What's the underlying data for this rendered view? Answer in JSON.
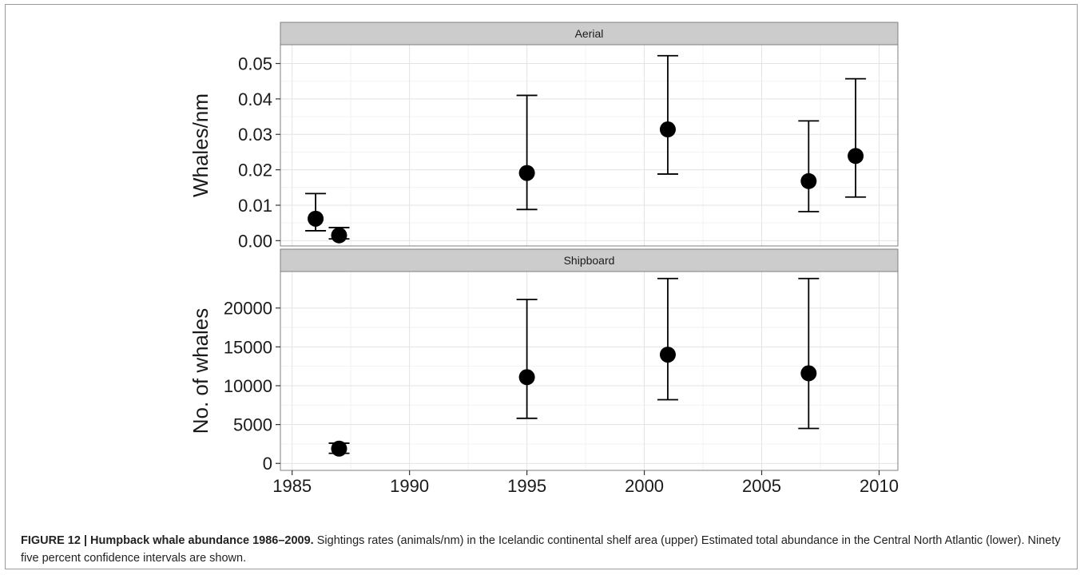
{
  "chart_data": [
    {
      "type": "scatter",
      "panel": "Aerial",
      "ylabel": "Whales/nm",
      "xlim": [
        1984.5,
        2010.8
      ],
      "ylim": [
        -0.0015,
        0.0553
      ],
      "xticks": [
        1985,
        1990,
        1995,
        2000,
        2005,
        2010
      ],
      "yticks": [
        0.0,
        0.01,
        0.02,
        0.03,
        0.04,
        0.05
      ],
      "ytick_labels": [
        "0.00",
        "0.01",
        "0.02",
        "0.03",
        "0.04",
        "0.05"
      ],
      "grid": true,
      "error_bars": true,
      "points": [
        {
          "x": 1986,
          "y": 0.0062,
          "lo": 0.0028,
          "hi": 0.0133
        },
        {
          "x": 1987,
          "y": 0.0015,
          "lo": 0.0005,
          "hi": 0.0037
        },
        {
          "x": 1995,
          "y": 0.0191,
          "lo": 0.0088,
          "hi": 0.041
        },
        {
          "x": 2001,
          "y": 0.0314,
          "lo": 0.0188,
          "hi": 0.0522
        },
        {
          "x": 2007,
          "y": 0.0168,
          "lo": 0.0082,
          "hi": 0.0338
        },
        {
          "x": 2009,
          "y": 0.0239,
          "lo": 0.0123,
          "hi": 0.0457
        }
      ]
    },
    {
      "type": "scatter",
      "panel": "Shipboard",
      "ylabel": "No. of whales",
      "xlim": [
        1984.5,
        2010.8
      ],
      "ylim": [
        -900,
        24700
      ],
      "xticks": [
        1985,
        1990,
        1995,
        2000,
        2005,
        2010
      ],
      "yticks": [
        0,
        5000,
        10000,
        15000,
        20000
      ],
      "ytick_labels": [
        "0",
        "5000",
        "10000",
        "15000",
        "20000"
      ],
      "grid": true,
      "error_bars": true,
      "points": [
        {
          "x": 1987,
          "y": 1900,
          "lo": 1300,
          "hi": 2600
        },
        {
          "x": 1995,
          "y": 11100,
          "lo": 5800,
          "hi": 21100
        },
        {
          "x": 2001,
          "y": 14000,
          "lo": 8200,
          "hi": 23800
        },
        {
          "x": 2007,
          "y": 11600,
          "lo": 4500,
          "hi": 23800
        }
      ]
    }
  ],
  "caption": {
    "title": "FIGURE 12 | Humpback whale abundance 1986–2009.",
    "text": " Sightings rates (animals/nm) in the Icelandic continental shelf area (upper) Estimated total abundance in the Central North Atlantic (lower). Ninety five percent confidence intervals are shown."
  }
}
